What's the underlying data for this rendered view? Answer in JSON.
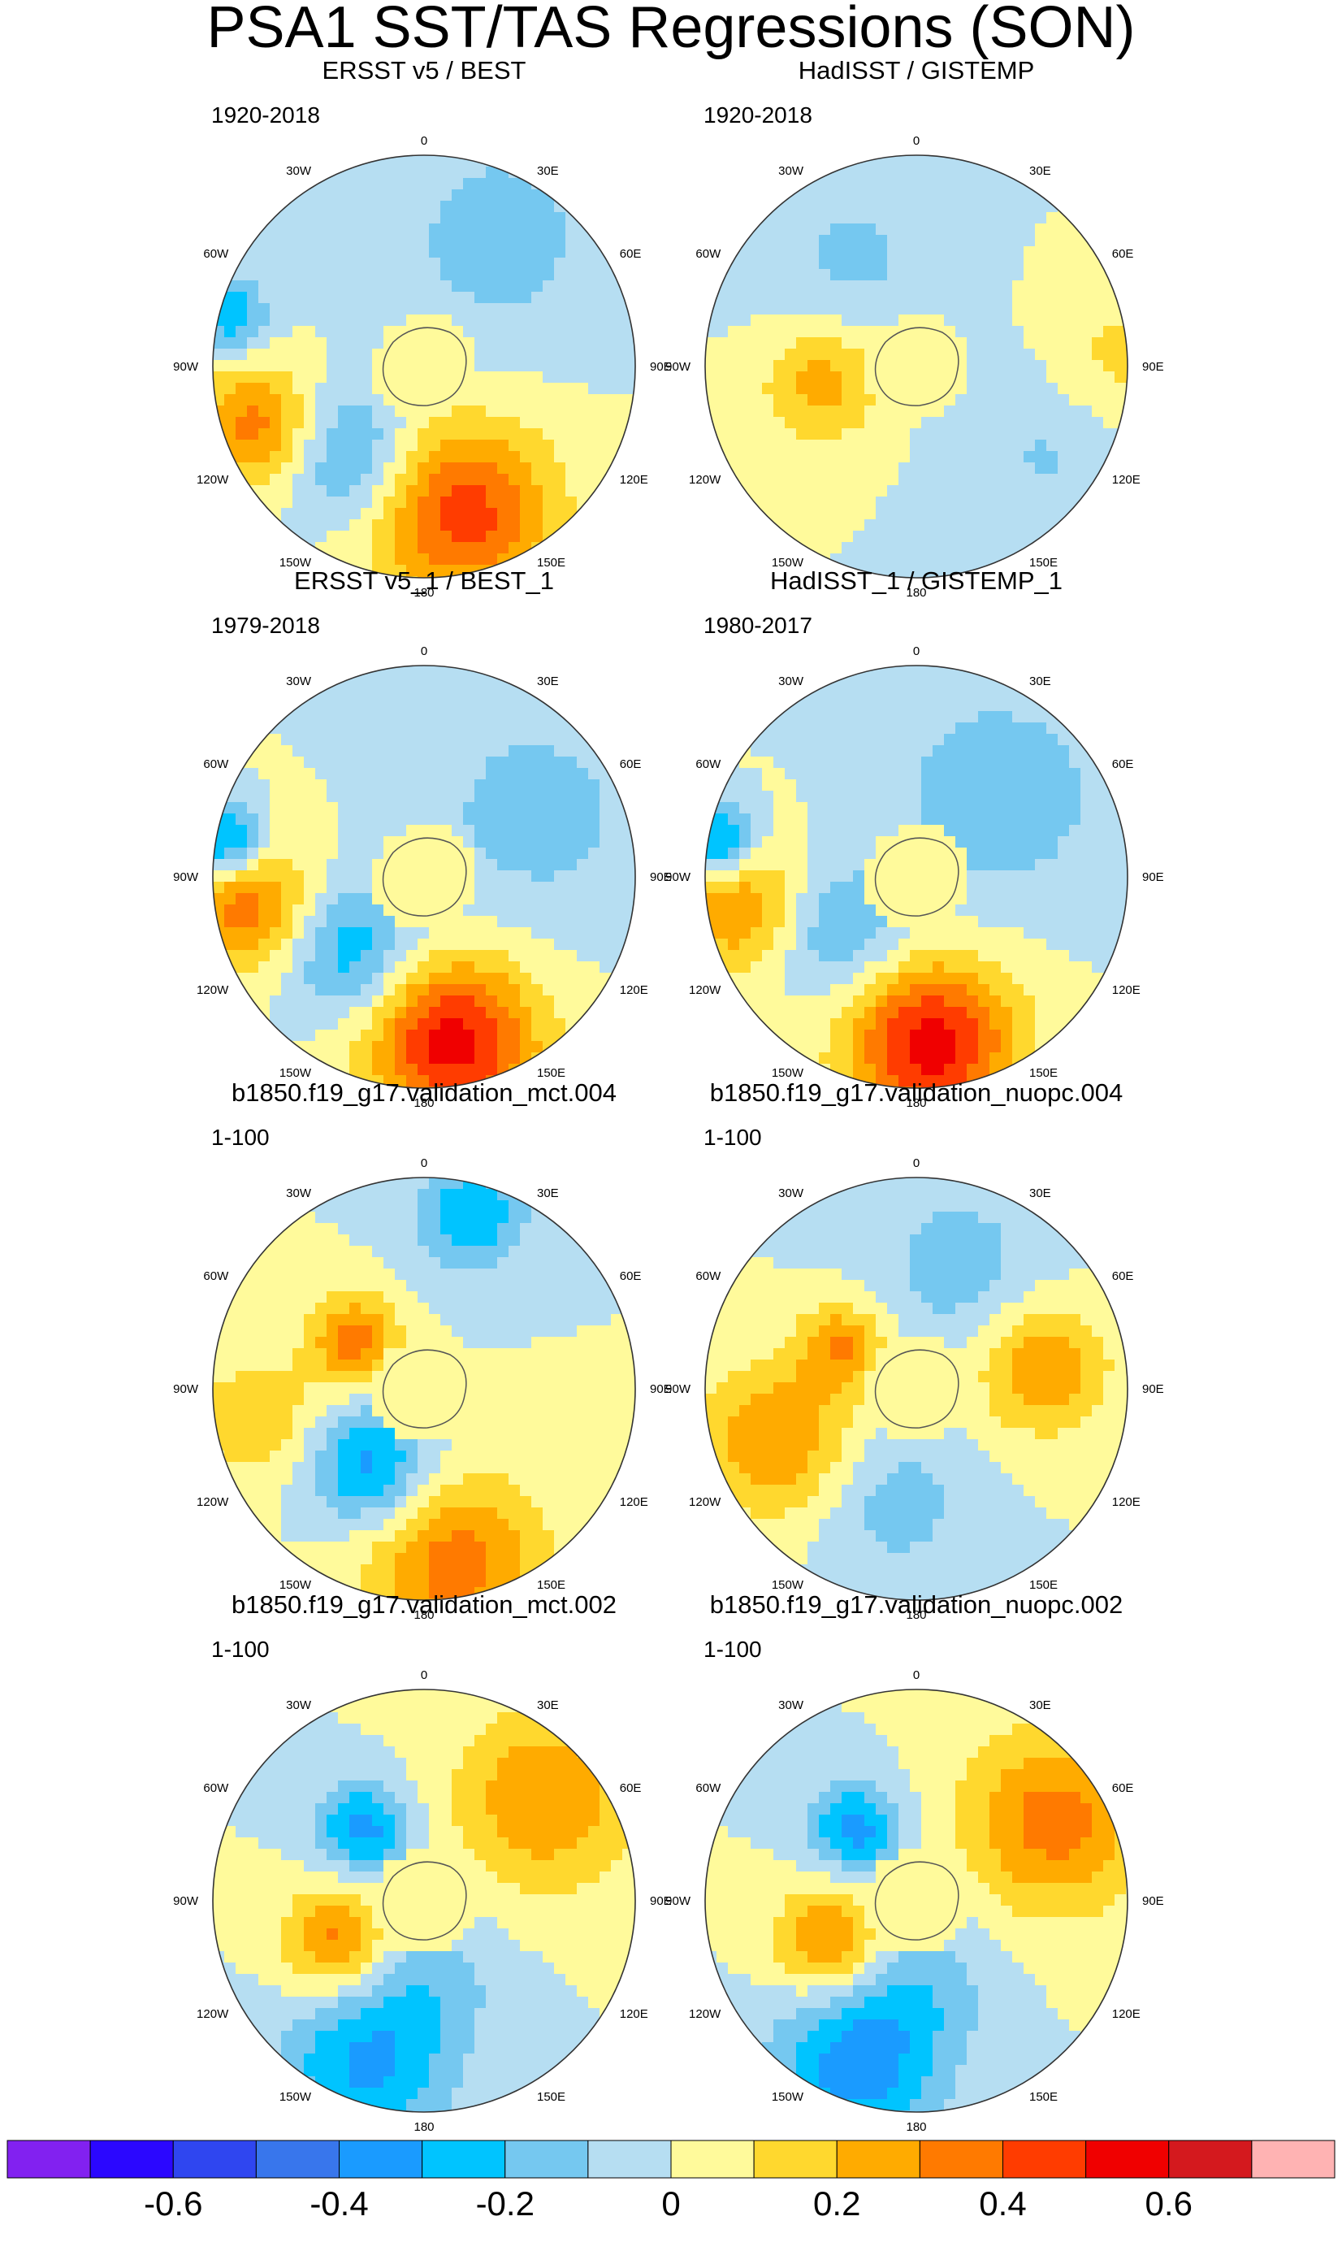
{
  "title": "PSA1 SST/TAS Regressions (SON)",
  "chart_data": {
    "type": "heatmap",
    "projection": "south polar stereographic",
    "title": "PSA1 SST/TAS Regressions (SON)",
    "panels": [
      {
        "title": "ERSST v5 / BEST",
        "period": "1920-2018",
        "features": [
          {
            "lon": 165,
            "r": 0.72,
            "v": 0.45,
            "s": 0.3
          },
          {
            "lon": -140,
            "r": 0.55,
            "v": -0.25,
            "s": 0.22
          },
          {
            "lon": -110,
            "r": 0.85,
            "v": 0.35,
            "s": 0.2
          },
          {
            "lon": 30,
            "r": 0.7,
            "v": -0.15,
            "s": 0.35
          },
          {
            "lon": -75,
            "r": 0.95,
            "v": -0.3,
            "s": 0.12
          }
        ]
      },
      {
        "title": "HadISST / GISTEMP",
        "period": "1920-2018",
        "features": [
          {
            "lon": -100,
            "r": 0.45,
            "v": 0.25,
            "s": 0.2
          },
          {
            "lon": 120,
            "r": 0.75,
            "v": -0.12,
            "s": 0.3
          },
          {
            "lon": -30,
            "r": 0.6,
            "v": -0.12,
            "s": 0.3
          },
          {
            "lon": 90,
            "r": 0.95,
            "v": 0.15,
            "s": 0.25
          }
        ]
      },
      {
        "title": "ERSST v5_1 / BEST_1",
        "period": "1979-2018",
        "features": [
          {
            "lon": 170,
            "r": 0.8,
            "v": 0.55,
            "s": 0.28
          },
          {
            "lon": -135,
            "r": 0.5,
            "v": -0.28,
            "s": 0.22
          },
          {
            "lon": -100,
            "r": 0.85,
            "v": 0.35,
            "s": 0.22
          },
          {
            "lon": 60,
            "r": 0.6,
            "v": -0.15,
            "s": 0.35
          },
          {
            "lon": -80,
            "r": 0.95,
            "v": -0.4,
            "s": 0.12
          }
        ]
      },
      {
        "title": "HadISST_1 / GISTEMP_1",
        "period": "1980-2017",
        "features": [
          {
            "lon": 175,
            "r": 0.8,
            "v": 0.55,
            "s": 0.28
          },
          {
            "lon": -125,
            "r": 0.45,
            "v": -0.22,
            "s": 0.22
          },
          {
            "lon": -100,
            "r": 0.85,
            "v": 0.3,
            "s": 0.22
          },
          {
            "lon": 45,
            "r": 0.55,
            "v": -0.18,
            "s": 0.35
          },
          {
            "lon": -80,
            "r": 0.95,
            "v": -0.4,
            "s": 0.12
          }
        ]
      },
      {
        "title": "b1850.f19_g17.validation_mct.004",
        "period": "1-100",
        "features": [
          {
            "lon": 170,
            "r": 0.85,
            "v": 0.35,
            "s": 0.3
          },
          {
            "lon": -145,
            "r": 0.45,
            "v": -0.35,
            "s": 0.2
          },
          {
            "lon": -55,
            "r": 0.4,
            "v": 0.35,
            "s": 0.15
          },
          {
            "lon": 15,
            "r": 0.85,
            "v": -0.3,
            "s": 0.18
          },
          {
            "lon": -100,
            "r": 0.8,
            "v": 0.2,
            "s": 0.2
          }
        ]
      },
      {
        "title": "b1850.f19_g17.validation_nuopc.004",
        "period": "1-100",
        "features": [
          {
            "lon": -110,
            "r": 0.7,
            "v": 0.3,
            "s": 0.25
          },
          {
            "lon": 80,
            "r": 0.6,
            "v": 0.3,
            "s": 0.22
          },
          {
            "lon": -60,
            "r": 0.4,
            "v": 0.3,
            "s": 0.15
          },
          {
            "lon": 20,
            "r": 0.6,
            "v": -0.15,
            "s": 0.3
          },
          {
            "lon": -170,
            "r": 0.55,
            "v": -0.15,
            "s": 0.25
          }
        ]
      },
      {
        "title": "b1850.f19_g17.validation_mct.002",
        "period": "1-100",
        "features": [
          {
            "lon": -160,
            "r": 0.85,
            "v": -0.3,
            "s": 0.28
          },
          {
            "lon": -115,
            "r": 0.45,
            "v": 0.35,
            "s": 0.18
          },
          {
            "lon": -40,
            "r": 0.45,
            "v": -0.35,
            "s": 0.15
          },
          {
            "lon": 50,
            "r": 0.75,
            "v": 0.3,
            "s": 0.3
          },
          {
            "lon": 180,
            "r": 0.4,
            "v": -0.15,
            "s": 0.25
          }
        ]
      },
      {
        "title": "b1850.f19_g17.validation_nuopc.002",
        "period": "1-100",
        "features": [
          {
            "lon": -160,
            "r": 0.85,
            "v": -0.35,
            "s": 0.28
          },
          {
            "lon": -115,
            "r": 0.45,
            "v": 0.35,
            "s": 0.18
          },
          {
            "lon": -40,
            "r": 0.45,
            "v": -0.35,
            "s": 0.15
          },
          {
            "lon": 60,
            "r": 0.75,
            "v": 0.35,
            "s": 0.3
          },
          {
            "lon": 180,
            "r": 0.4,
            "v": -0.15,
            "s": 0.25
          }
        ]
      }
    ],
    "longitude_labels": [
      "0",
      "30E",
      "60E",
      "90E",
      "120E",
      "150E",
      "180",
      "150W",
      "120W",
      "90W",
      "60W",
      "30W"
    ],
    "colorbar": {
      "levels": [
        -0.7,
        -0.6,
        -0.5,
        -0.4,
        -0.3,
        -0.2,
        -0.1,
        0,
        0.1,
        0.2,
        0.3,
        0.4,
        0.5,
        0.6,
        0.7
      ],
      "colors": [
        "#8221f0",
        "#2b07ff",
        "#2f46f0",
        "#3876ec",
        "#1a9bff",
        "#00c4ff",
        "#75c8f0",
        "#b6def2",
        "#fffa9b",
        "#ffd82e",
        "#ffab00",
        "#ff7a00",
        "#ff3c00",
        "#f00000",
        "#d4191e",
        "#ffb3b3"
      ],
      "tick_labels": [
        "-0.6",
        "-0.4",
        "-0.2",
        "0",
        "0.2",
        "0.4",
        "0.6"
      ],
      "tick_values": [
        -0.6,
        -0.4,
        -0.2,
        0,
        0.2,
        0.4,
        0.6
      ]
    }
  }
}
